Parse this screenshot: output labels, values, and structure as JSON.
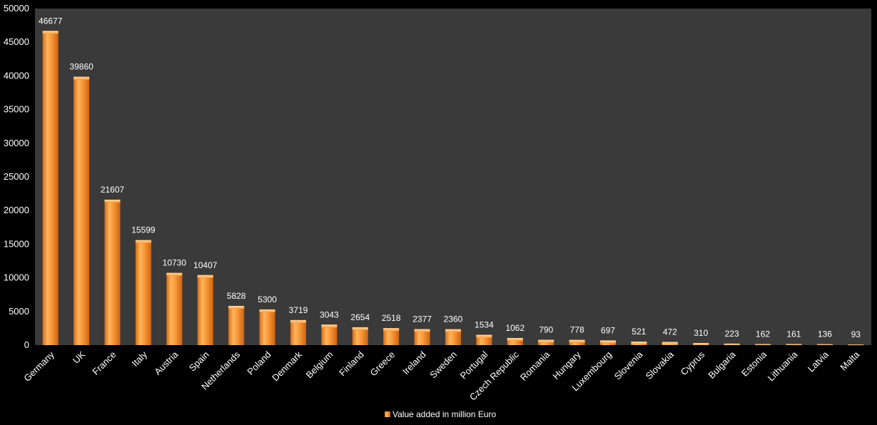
{
  "chart_data": {
    "type": "bar",
    "categories": [
      "Germany",
      "UK",
      "France",
      "Italy",
      "Austria",
      "Spain",
      "Netherlands",
      "Poland",
      "Denmark",
      "Belgium",
      "Finland",
      "Greece",
      "Ireland",
      "Sweden",
      "Portugal",
      "Czech Republic",
      "Romania",
      "Hungary",
      "Luxembourg",
      "Slovenia",
      "Slovakia",
      "Cyprus",
      "Bulgaria",
      "Estonia",
      "Lithuania",
      "Latvia",
      "Malta"
    ],
    "series": [
      {
        "name": "Value added in million Euro",
        "values": [
          46677,
          39860,
          21607,
          15599,
          10730,
          10407,
          5828,
          5300,
          3719,
          3043,
          2654,
          2518,
          2377,
          2360,
          1534,
          1062,
          790,
          778,
          697,
          521,
          472,
          310,
          223,
          162,
          161,
          136,
          93
        ]
      }
    ],
    "ylim": [
      0,
      50000
    ],
    "yticks": [
      "0",
      "5000",
      "10000",
      "15000",
      "20000",
      "25000",
      "30000",
      "35000",
      "40000",
      "45000",
      "50000"
    ],
    "title": "",
    "xlabel": "",
    "ylabel": "",
    "grid": false,
    "legend_position": "bottom",
    "colors": {
      "bar": "#f5922f",
      "bar_light": "#ffc07a",
      "bar_dark": "#d86b10",
      "plot_background": "#3a3a3a",
      "page_background": "#000000",
      "text": "#ffffff"
    }
  }
}
